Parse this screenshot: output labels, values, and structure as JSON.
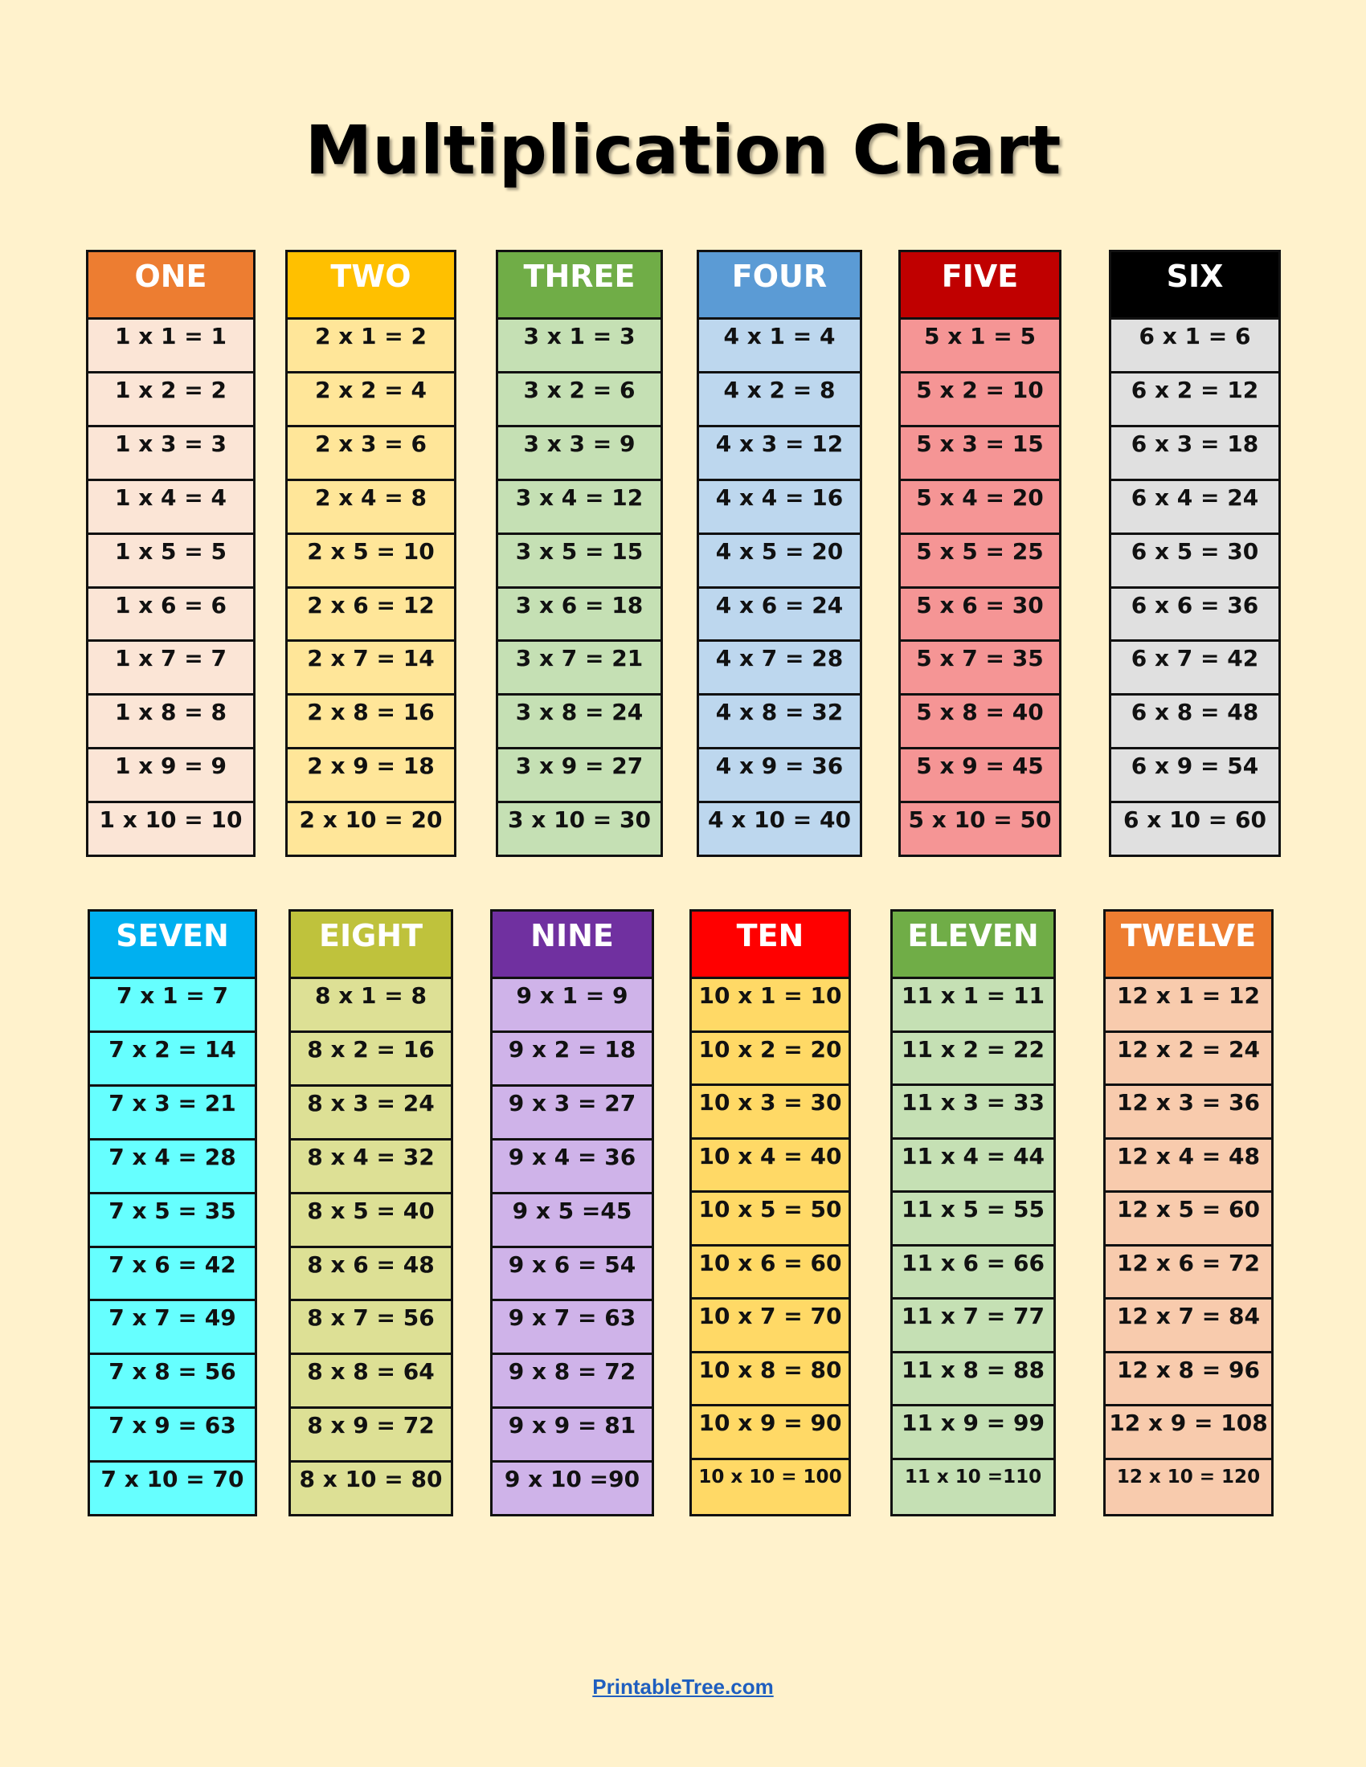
{
  "title": "Multiplication Chart",
  "footer_link": "PrintableTree.com",
  "background_color": "#FFF2CC",
  "tables": [
    {
      "name": "ONE",
      "n": 1,
      "header_color": "#ED7D31",
      "body_color": "#FBE5D6",
      "rows": [
        "1 x 1 = 1",
        "1 x 2 = 2",
        "1 x 3 = 3",
        "1 x 4 = 4",
        "1 x 5 = 5",
        "1 x 6 = 6",
        "1 x 7 = 7",
        "1 x 8 = 8",
        "1 x 9 = 9",
        "1 x 10 = 10"
      ]
    },
    {
      "name": "TWO",
      "n": 2,
      "header_color": "#FFC000",
      "body_color": "#FFE699",
      "rows": [
        "2 x 1 = 2",
        "2 x 2 = 4",
        "2 x 3 = 6",
        "2 x 4 = 8",
        "2 x 5 = 10",
        "2 x 6 = 12",
        "2 x 7 = 14",
        "2 x 8 = 16",
        "2 x 9 = 18",
        "2 x 10 = 20"
      ]
    },
    {
      "name": "THREE",
      "n": 3,
      "header_color": "#70AD47",
      "body_color": "#C5E0B4",
      "rows": [
        "3 x 1 = 3",
        "3 x 2 = 6",
        "3 x 3 = 9",
        "3 x 4 = 12",
        "3 x 5 = 15",
        "3 x 6 = 18",
        "3 x 7 = 21",
        "3 x 8 = 24",
        "3 x 9 = 27",
        "3 x 10 = 30"
      ]
    },
    {
      "name": "FOUR",
      "n": 4,
      "header_color": "#5B9BD5",
      "body_color": "#BDD7EE",
      "rows": [
        "4 x 1 = 4",
        "4 x 2 = 8",
        "4 x 3 = 12",
        "4 x 4 = 16",
        "4 x 5 = 20",
        "4 x 6 = 24",
        "4 x 7 = 28",
        "4 x 8 = 32",
        "4 x 9 = 36",
        "4 x 10 = 40"
      ]
    },
    {
      "name": "FIVE",
      "n": 5,
      "header_color": "#C00000",
      "body_color": "#F59595",
      "rows": [
        "5 x 1 = 5",
        "5 x 2 = 10",
        "5 x 3 = 15",
        "5 x 4 = 20",
        "5 x 5 = 25",
        "5 x 6 = 30",
        "5 x 7 = 35",
        "5 x 8 = 40",
        "5 x 9 = 45",
        "5 x 10 = 50"
      ]
    },
    {
      "name": "SIX",
      "n": 6,
      "header_color": "#000000",
      "body_color": "#E0E0E0",
      "rows": [
        "6 x 1 = 6",
        "6 x 2 = 12",
        "6 x 3 = 18",
        "6 x 4 = 24",
        "6 x 5 = 30",
        "6 x 6 = 36",
        "6 x 7 = 42",
        "6 x 8 = 48",
        "6 x 9 = 54",
        "6 x 10 = 60"
      ]
    },
    {
      "name": "SEVEN",
      "n": 7,
      "header_color": "#00B0F0",
      "body_color": "#66FFFF",
      "rows": [
        "7 x 1 = 7",
        "7 x 2 = 14",
        "7 x 3 = 21",
        "7 x 4 = 28",
        "7 x 5 = 35",
        "7 x 6 = 42",
        "7 x 7 = 49",
        "7 x 8 = 56",
        "7 x 9 = 63",
        "7 x 10 = 70"
      ]
    },
    {
      "name": "EIGHT",
      "n": 8,
      "header_color": "#BFC23C",
      "body_color": "#DDE095",
      "rows": [
        "8 x 1 = 8",
        "8 x 2 = 16",
        "8 x 3 = 24",
        "8 x 4 = 32",
        "8 x 5 = 40",
        "8 x 6 = 48",
        "8 x 7 = 56",
        "8 x 8 = 64",
        "8 x 9 = 72",
        "8 x 10 = 80"
      ]
    },
    {
      "name": "NINE",
      "n": 9,
      "header_color": "#7030A0",
      "body_color": "#CFB3E9",
      "rows": [
        "9 x 1 = 9",
        "9 x 2 = 18",
        "9 x 3 = 27",
        "9 x 4 = 36",
        "9 x 5 =45",
        "9 x 6 = 54",
        "9 x 7 = 63",
        "9 x 8 = 72",
        "9 x 9 = 81",
        "9 x 10 =90"
      ]
    },
    {
      "name": "TEN",
      "n": 10,
      "header_color": "#FF0000",
      "body_color": "#FFD966",
      "rows": [
        "10 x 1 = 10",
        "10 x 2 = 20",
        "10 x 3 = 30",
        "10 x 4 = 40",
        "10 x 5 = 50",
        "10 x 6 = 60",
        "10 x 7 = 70",
        "10 x 8 = 80",
        "10 x 9 = 90",
        "10 x 10 = 100"
      ]
    },
    {
      "name": "ELEVEN",
      "n": 11,
      "header_color": "#70AD47",
      "body_color": "#C5E0B4",
      "rows": [
        "11 x 1 = 11",
        "11 x 2 = 22",
        "11 x 3 = 33",
        "11 x 4 = 44",
        "11 x 5 = 55",
        "11 x 6 = 66",
        "11 x 7 = 77",
        "11 x 8 = 88",
        "11 x 9 = 99",
        "11 x 10 =110"
      ]
    },
    {
      "name": "TWELVE",
      "n": 12,
      "header_color": "#ED7D31",
      "body_color": "#F8CBAD",
      "rows": [
        "12 x 1 = 12",
        "12 x 2 = 24",
        "12 x 3 = 36",
        "12 x 4 = 48",
        "12 x 5 = 60",
        "12 x 6 = 72",
        "12 x 7 = 84",
        "12 x 8 = 96",
        "12 x 9 = 108",
        "12 x 10 = 120"
      ]
    }
  ]
}
